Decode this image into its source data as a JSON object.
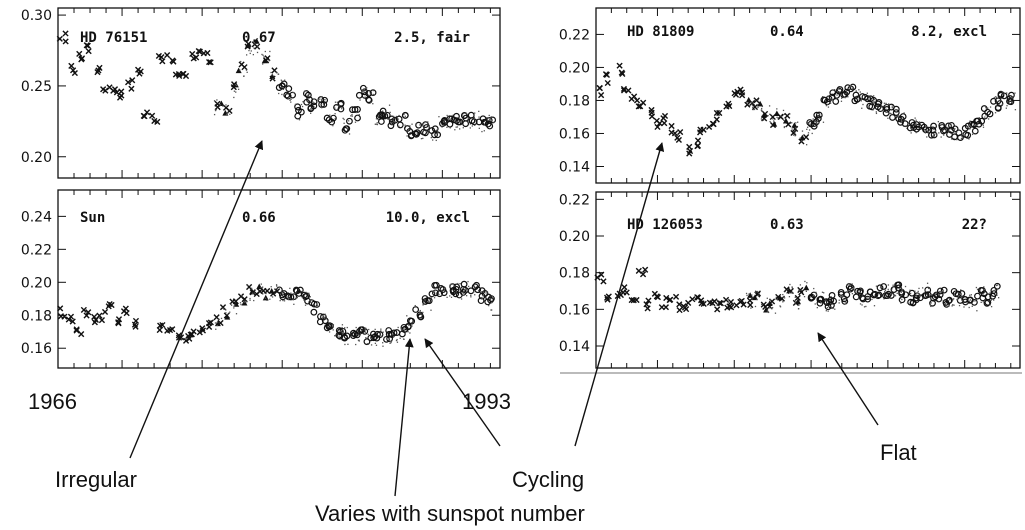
{
  "chart_data": [
    {
      "type": "scatter",
      "id": "hd76151",
      "star": "HD 76151",
      "color_index": "0.67",
      "grade": "2.5, fair",
      "ylim": [
        0.185,
        0.305
      ],
      "yticks": [
        0.2,
        0.25,
        0.3
      ],
      "ytick_labels": [
        "0.20",
        "0.25",
        "0.30"
      ],
      "x": [
        1966.3,
        1967.0,
        1967.5,
        1968.0,
        1968.5,
        1969.0,
        1969.5,
        1970.0,
        1970.5,
        1971.0,
        1971.5,
        1972.0,
        1972.5,
        1973.0,
        1973.5,
        1974.0,
        1974.5,
        1975.0,
        1975.5,
        1976.0,
        1976.5,
        1977.0,
        1977.5,
        1978.0,
        1978.5,
        1979.0,
        1979.5,
        1980.0,
        1980.5,
        1981.0,
        1981.5,
        1982.0,
        1982.5,
        1983.0,
        1983.5,
        1984.0,
        1984.5,
        1985.0,
        1985.5,
        1986.0,
        1986.5,
        1987.0,
        1987.5,
        1988.0,
        1988.5,
        1989.0,
        1989.5,
        1990.0,
        1990.5,
        1991.0,
        1991.5,
        1992.0,
        1992.5,
        1993.0
      ],
      "y": [
        0.284,
        0.261,
        0.271,
        0.276,
        0.262,
        0.25,
        0.247,
        0.244,
        0.251,
        0.258,
        0.23,
        0.226,
        0.268,
        0.27,
        0.256,
        0.255,
        0.273,
        0.276,
        0.27,
        0.236,
        0.232,
        0.248,
        0.262,
        0.277,
        0.278,
        0.27,
        0.258,
        0.25,
        0.245,
        0.232,
        0.242,
        0.236,
        0.239,
        0.228,
        0.236,
        0.222,
        0.23,
        0.245,
        0.242,
        0.228,
        0.232,
        0.225,
        0.226,
        0.218,
        0.219,
        0.22,
        0.217,
        0.226,
        0.224,
        0.225,
        0.226,
        0.227,
        0.224,
        0.224
      ]
    },
    {
      "type": "scatter",
      "id": "sun",
      "star": "Sun",
      "color_index": "0.66",
      "grade": "10.0, excl",
      "ylim": [
        0.148,
        0.256
      ],
      "yticks": [
        0.16,
        0.18,
        0.2,
        0.22,
        0.24
      ],
      "ytick_labels": [
        "0.16",
        "0.18",
        "0.20",
        "0.22",
        "0.24"
      ],
      "x": [
        1966.3,
        1966.8,
        1967.3,
        1967.8,
        1968.3,
        1968.8,
        1969.3,
        1969.8,
        1970.3,
        1970.8,
        1972.5,
        1973.0,
        1973.5,
        1974.0,
        1974.5,
        1975.0,
        1975.5,
        1976.0,
        1976.5,
        1977.0,
        1977.5,
        1978.0,
        1978.5,
        1979.0,
        1979.5,
        1980.0,
        1980.5,
        1981.0,
        1981.5,
        1982.0,
        1982.5,
        1983.0,
        1983.5,
        1984.0,
        1984.5,
        1985.0,
        1985.5,
        1986.0,
        1986.5,
        1987.0,
        1987.5,
        1988.0,
        1988.5,
        1989.0,
        1989.5,
        1990.0,
        1990.5,
        1991.0,
        1991.5,
        1992.0,
        1992.5,
        1993.0
      ],
      "y": [
        0.182,
        0.178,
        0.17,
        0.183,
        0.176,
        0.18,
        0.184,
        0.178,
        0.182,
        0.176,
        0.172,
        0.17,
        0.168,
        0.167,
        0.168,
        0.17,
        0.174,
        0.176,
        0.182,
        0.186,
        0.19,
        0.194,
        0.195,
        0.193,
        0.196,
        0.194,
        0.192,
        0.194,
        0.19,
        0.185,
        0.178,
        0.173,
        0.17,
        0.168,
        0.168,
        0.168,
        0.167,
        0.167,
        0.168,
        0.168,
        0.17,
        0.175,
        0.182,
        0.188,
        0.195,
        0.194,
        0.196,
        0.195,
        0.196,
        0.195,
        0.192,
        0.188
      ]
    },
    {
      "type": "scatter",
      "id": "hd81809",
      "star": "HD 81809",
      "color_index": "0.64",
      "grade": "8.2, excl",
      "ylim": [
        0.13,
        0.236
      ],
      "yticks": [
        0.14,
        0.16,
        0.18,
        0.2,
        0.22
      ],
      "ytick_labels": [
        "0.14",
        "0.16",
        "0.18",
        "0.20",
        "0.22"
      ],
      "x": [
        1966.3,
        1966.8,
        1967.5,
        1968.0,
        1968.5,
        1969.0,
        1969.5,
        1970.0,
        1970.5,
        1971.0,
        1971.5,
        1972.0,
        1972.5,
        1973.0,
        1973.5,
        1974.0,
        1974.5,
        1975.0,
        1975.5,
        1976.0,
        1976.5,
        1977.0,
        1977.5,
        1978.0,
        1978.5,
        1979.0,
        1979.5,
        1980.0,
        1980.5,
        1981.0,
        1981.5,
        1982.0,
        1982.5,
        1983.0,
        1983.5,
        1984.0,
        1984.5,
        1985.0,
        1985.5,
        1986.0,
        1986.5,
        1987.0,
        1987.5,
        1988.0,
        1988.5,
        1989.0,
        1989.5,
        1990.0,
        1990.5,
        1991.0,
        1991.5,
        1992.0,
        1992.5,
        1993.0
      ],
      "y": [
        0.186,
        0.193,
        0.199,
        0.188,
        0.182,
        0.176,
        0.172,
        0.165,
        0.168,
        0.162,
        0.158,
        0.15,
        0.155,
        0.163,
        0.167,
        0.17,
        0.178,
        0.184,
        0.186,
        0.18,
        0.178,
        0.172,
        0.168,
        0.17,
        0.168,
        0.162,
        0.158,
        0.165,
        0.17,
        0.178,
        0.182,
        0.184,
        0.186,
        0.182,
        0.18,
        0.178,
        0.176,
        0.174,
        0.172,
        0.168,
        0.166,
        0.164,
        0.163,
        0.162,
        0.163,
        0.162,
        0.16,
        0.162,
        0.164,
        0.168,
        0.172,
        0.178,
        0.181,
        0.18
      ]
    },
    {
      "type": "scatter",
      "id": "hd126053",
      "star": "HD 126053",
      "color_index": "0.63",
      "grade": "22?",
      "ylim": [
        0.128,
        0.224
      ],
      "yticks": [
        0.14,
        0.16,
        0.18,
        0.2,
        0.22
      ],
      "ytick_labels": [
        "0.14",
        "0.16",
        "0.18",
        "0.20",
        "0.22"
      ],
      "x": [
        1966.3,
        1966.8,
        1967.5,
        1968.0,
        1968.5,
        1969.0,
        1969.5,
        1970.0,
        1970.5,
        1971.0,
        1971.5,
        1972.0,
        1972.5,
        1973.0,
        1973.5,
        1974.0,
        1974.5,
        1975.0,
        1975.5,
        1976.0,
        1976.5,
        1977.0,
        1977.5,
        1978.0,
        1978.5,
        1979.0,
        1979.5,
        1980.0,
        1980.5,
        1981.0,
        1981.5,
        1982.0,
        1982.5,
        1983.0,
        1983.5,
        1984.0,
        1984.5,
        1985.0,
        1985.5,
        1986.0,
        1986.5,
        1987.0,
        1987.5,
        1988.0,
        1988.5,
        1989.0,
        1989.5,
        1990.0,
        1990.5,
        1991.0,
        1991.5,
        1992.0
      ],
      "y": [
        0.178,
        0.166,
        0.168,
        0.17,
        0.164,
        0.18,
        0.162,
        0.166,
        0.164,
        0.165,
        0.162,
        0.163,
        0.164,
        0.165,
        0.166,
        0.161,
        0.163,
        0.164,
        0.162,
        0.165,
        0.166,
        0.162,
        0.163,
        0.164,
        0.172,
        0.165,
        0.172,
        0.168,
        0.166,
        0.164,
        0.165,
        0.167,
        0.17,
        0.168,
        0.166,
        0.167,
        0.17,
        0.169,
        0.171,
        0.168,
        0.166,
        0.168,
        0.17,
        0.166,
        0.168,
        0.165,
        0.167,
        0.166,
        0.164,
        0.168,
        0.166,
        0.17
      ]
    }
  ],
  "year_labels": {
    "start": "1966",
    "end": "1993"
  },
  "annotations": {
    "irregular": "Irregular",
    "cycling": "Cycling",
    "flat": "Flat",
    "sunspot": "Varies with sunspot number"
  }
}
